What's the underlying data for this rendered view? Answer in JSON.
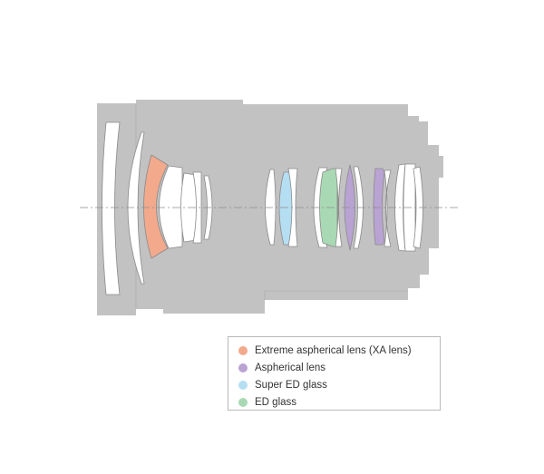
{
  "colors": {
    "barrel": "#c2c2c2",
    "lens_plain": "#ffffff",
    "lens_stroke": "#8a8a8a",
    "axis": "#8c8c8c"
  },
  "legend": {
    "items": [
      {
        "label": "Extreme aspherical lens (XA lens)",
        "color": "#f2a98c"
      },
      {
        "label": "Aspherical lens",
        "color": "#b9a3d3"
      },
      {
        "label": "Super ED glass",
        "color": "#b5def2"
      },
      {
        "label": "ED glass",
        "color": "#a9d9b4"
      }
    ]
  }
}
